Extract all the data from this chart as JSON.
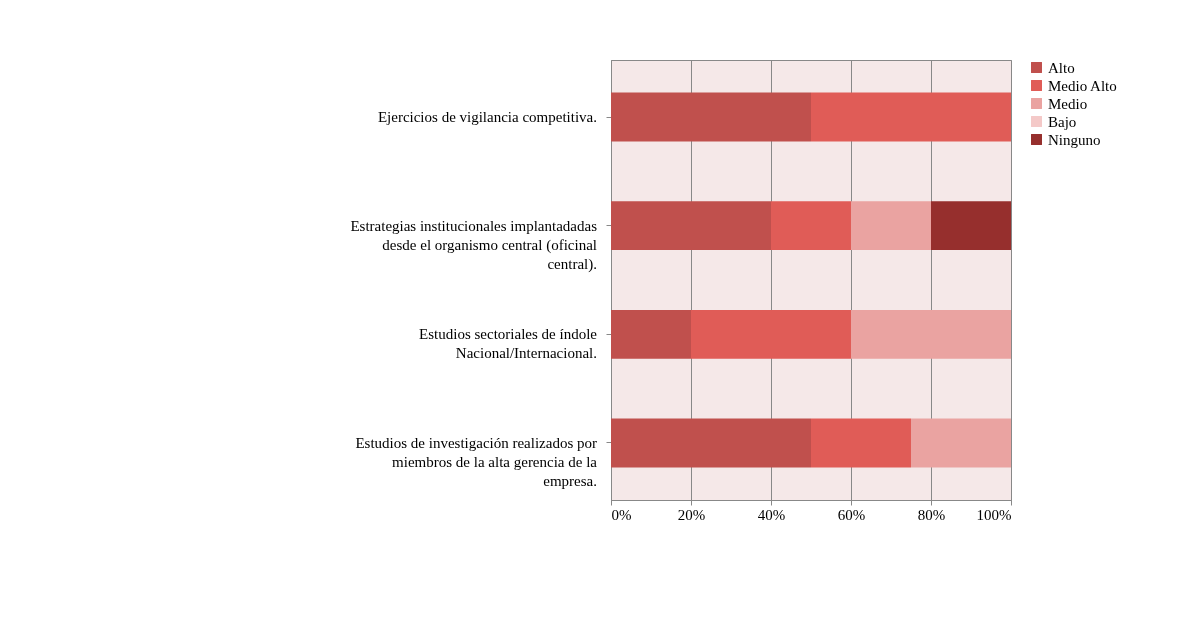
{
  "chart_data": {
    "type": "bar",
    "orientation": "horizontal",
    "stacked": true,
    "categories": [
      "Ejercicios de vigilancia competitiva.",
      "Estrategias institucionales implantadadas desde el organismo central (oficinal central).",
      "Estudios sectoriales de índole Nacional/Internacional.",
      "Estudios de investigación realizados por miembros de la alta gerencia de la empresa."
    ],
    "series": [
      {
        "name": "Alto",
        "color": "#c0504d",
        "values": [
          50,
          40,
          20,
          50
        ]
      },
      {
        "name": "Medio Alto",
        "color": "#e05c57",
        "values": [
          50,
          20,
          40,
          25
        ]
      },
      {
        "name": "Medio",
        "color": "#eaa3a1",
        "values": [
          0,
          20,
          40,
          25
        ]
      },
      {
        "name": "Bajo",
        "color": "#f4c9c8",
        "values": [
          0,
          0,
          0,
          0
        ]
      },
      {
        "name": "Ninguno",
        "color": "#962f2d",
        "values": [
          0,
          20,
          0,
          0
        ]
      }
    ],
    "xlim": [
      0,
      100
    ],
    "xticks": [
      {
        "value": 0,
        "label": "0%"
      },
      {
        "value": 20,
        "label": "20%"
      },
      {
        "value": 40,
        "label": "40%"
      },
      {
        "value": 60,
        "label": "60%"
      },
      {
        "value": 80,
        "label": "80%"
      },
      {
        "value": 100,
        "label": "100%"
      }
    ],
    "grid": "x",
    "legend": "right"
  }
}
